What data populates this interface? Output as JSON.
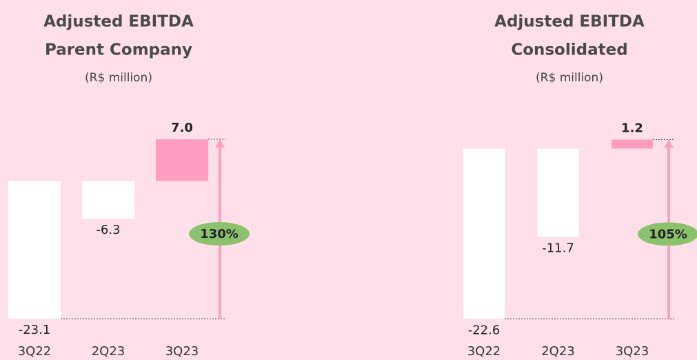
{
  "chart_data": [
    {
      "type": "bar",
      "title": [
        "Adjusted EBITDA",
        "Parent Company"
      ],
      "subtitle": "(R$ million)",
      "categories": [
        "3Q22",
        "2Q23",
        "3Q23"
      ],
      "values": [
        -23.1,
        -6.3,
        7.0
      ],
      "value_labels": [
        "-23.1",
        "-6.3",
        "7.0"
      ],
      "colors": [
        "#ffffff",
        "#ffffff",
        "#ff9dc0"
      ],
      "ylim": [
        -24,
        13
      ],
      "annotation": "130%",
      "annotation_color": "#8cc26e",
      "arrow_color": "#f7a3bf"
    },
    {
      "type": "bar",
      "title": [
        "Adjusted EBITDA",
        "Consolidated"
      ],
      "subtitle": "(R$ million)",
      "categories": [
        "3Q22",
        "2Q23",
        "3Q23"
      ],
      "values": [
        -22.6,
        -11.7,
        1.2
      ],
      "value_labels": [
        "-22.6",
        "-11.7",
        "1.2"
      ],
      "colors": [
        "#ffffff",
        "#ffffff",
        "#ff9dc0"
      ],
      "ylim": [
        -23.3,
        6
      ],
      "annotation": "105%",
      "annotation_color": "#8cc26e",
      "arrow_color": "#f7a3bf"
    }
  ]
}
